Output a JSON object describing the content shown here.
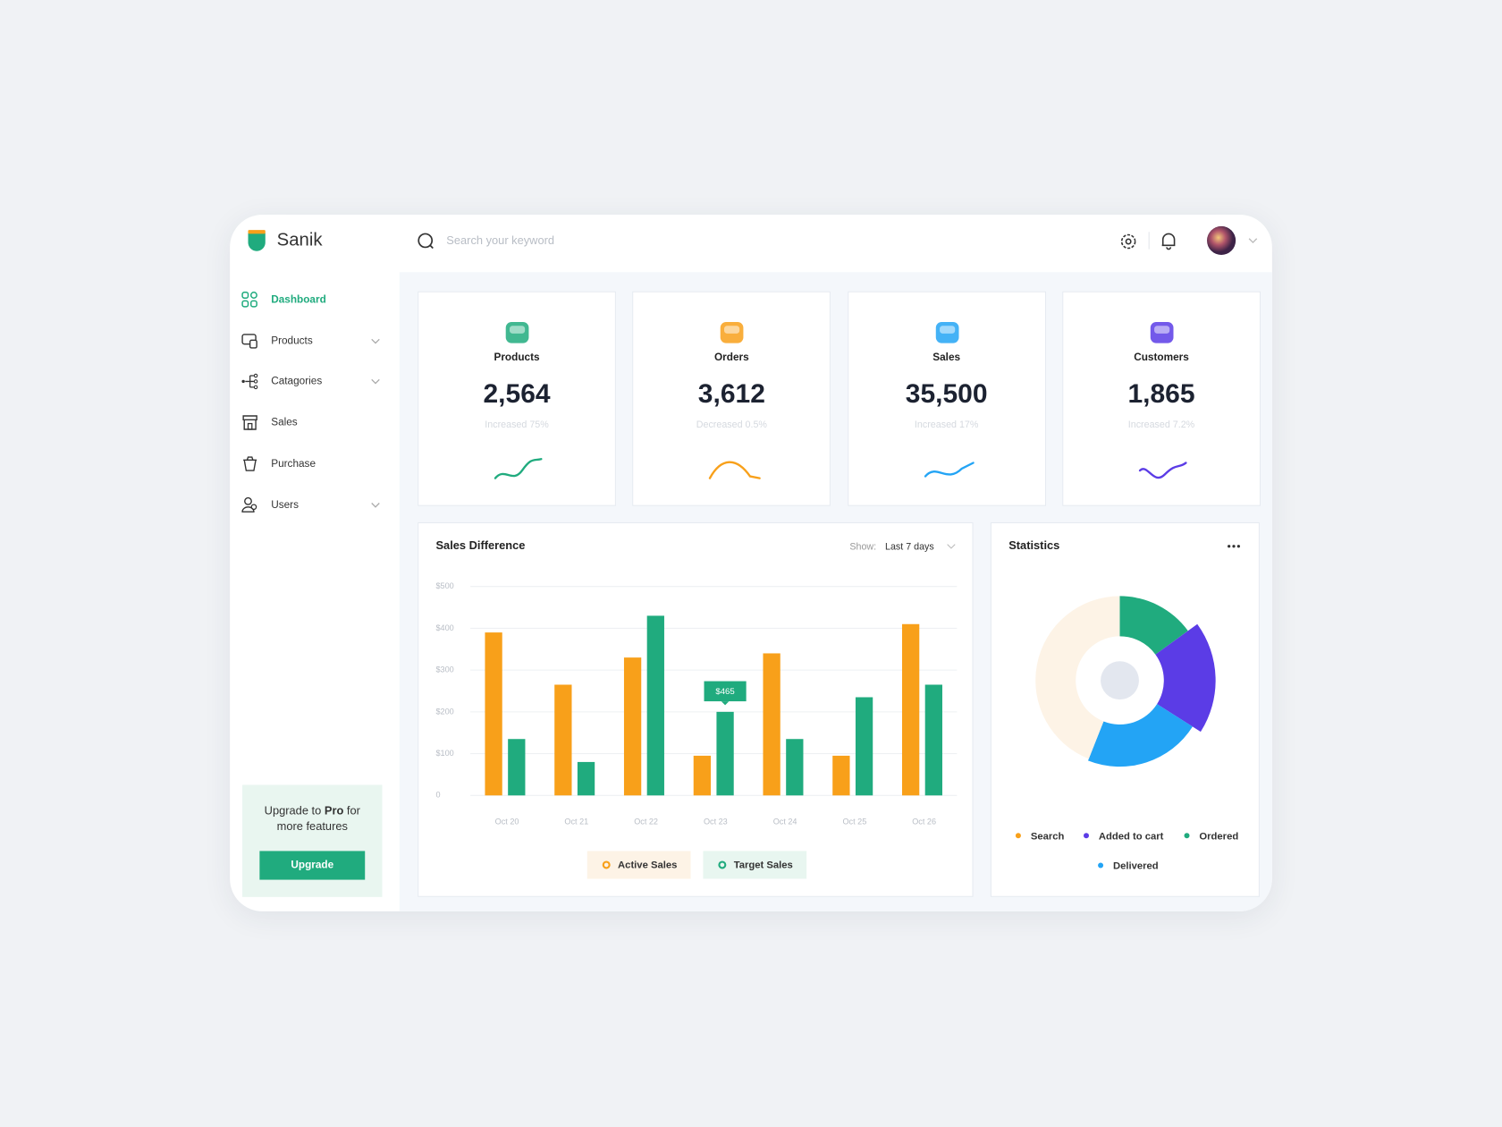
{
  "brand": "Sanik",
  "search_placeholder": "Search your keyword",
  "nav": [
    {
      "label": "Dashboard",
      "active": true,
      "has_submenu": false
    },
    {
      "label": "Products",
      "active": false,
      "has_submenu": true
    },
    {
      "label": "Catagories",
      "active": false,
      "has_submenu": true
    },
    {
      "label": "Sales",
      "active": false,
      "has_submenu": false
    },
    {
      "label": "Purchase",
      "active": false,
      "has_submenu": false
    },
    {
      "label": "Users",
      "active": false,
      "has_submenu": true
    }
  ],
  "upgrade": {
    "text_before": "Upgrade to ",
    "text_bold": "Pro",
    "text_after": " for more features",
    "button": "Upgrade"
  },
  "stats": [
    {
      "label": "Products",
      "value": "2,564",
      "change": "Increased 75%",
      "color": "#20ab7e"
    },
    {
      "label": "Orders",
      "value": "3,612",
      "change": "Decreased 0.5%",
      "color": "#f8a01a"
    },
    {
      "label": "Sales",
      "value": "35,500",
      "change": "Increased 17%",
      "color": "#23a4f5"
    },
    {
      "label": "Customers",
      "value": "1,865",
      "change": "Increased 7.2%",
      "color": "#5b3ce6"
    }
  ],
  "sales_chart": {
    "type": "bar",
    "title": "Sales Difference",
    "show_label": "Show:",
    "range": "Last 7 days",
    "categories": [
      "Oct 20",
      "Oct 21",
      "Oct 22",
      "Oct 23",
      "Oct 24",
      "Oct 25",
      "Oct 26"
    ],
    "series": [
      {
        "name": "Active Sales",
        "color": "#f8a01a",
        "values": [
          390,
          265,
          330,
          95,
          340,
          95,
          410
        ]
      },
      {
        "name": "Target Sales",
        "color": "#20ab7e",
        "values": [
          135,
          80,
          430,
          200,
          135,
          235,
          265
        ]
      }
    ],
    "ylim": [
      0,
      500
    ],
    "yticks": [
      0,
      {
        "value": 100,
        "label": "$100"
      },
      {
        "value": 200,
        "label": "$200"
      },
      {
        "value": 300,
        "label": "$300"
      },
      {
        "value": 400,
        "label": "$400"
      },
      {
        "value": 500,
        "label": "$500"
      }
    ],
    "grid": true,
    "tooltip": "$465"
  },
  "statistics": {
    "type": "donut",
    "title": "Statistics",
    "series": [
      {
        "name": "Search",
        "color": "#fdf3e6",
        "dot": "#f8a01a",
        "value": 44
      },
      {
        "name": "Added to cart",
        "color": "#5b3ce6",
        "dot": "#5b3ce6",
        "value": 19
      },
      {
        "name": "Ordered",
        "color": "#20ab7e",
        "dot": "#20ab7e",
        "value": 15
      },
      {
        "name": "Delivered",
        "color": "#23a4f5",
        "dot": "#23a4f5",
        "value": 22
      }
    ]
  }
}
